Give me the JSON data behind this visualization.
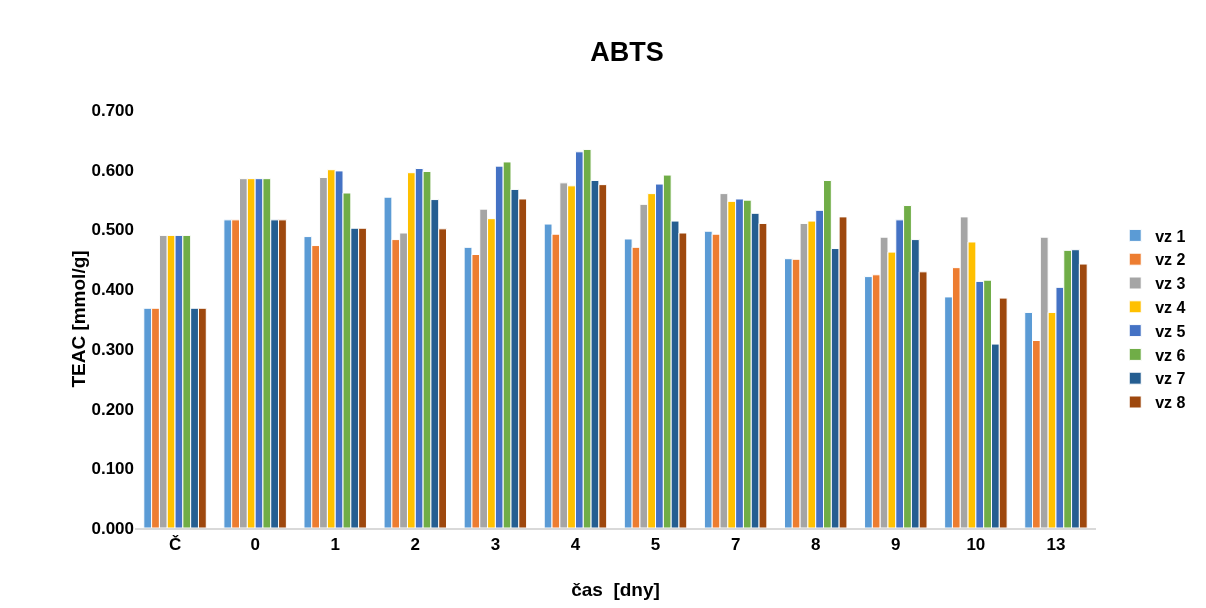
{
  "chart_data": {
    "type": "bar",
    "title": "ABTS",
    "xlabel": "čas  [dny]",
    "ylabel": "TEAC [mmol/g]",
    "categories": [
      "Č",
      "0",
      "1",
      "2",
      "3",
      "4",
      "5",
      "7",
      "8",
      "9",
      "10",
      "13"
    ],
    "series": [
      {
        "name": "vz 1",
        "color": "#5b9bd5",
        "values": [
          0.368,
          0.516,
          0.488,
          0.554,
          0.47,
          0.509,
          0.484,
          0.497,
          0.451,
          0.421,
          0.387,
          0.361
        ]
      },
      {
        "name": "vz 2",
        "color": "#ed7d31",
        "values": [
          0.368,
          0.516,
          0.473,
          0.483,
          0.458,
          0.492,
          0.47,
          0.492,
          0.45,
          0.424,
          0.436,
          0.314
        ]
      },
      {
        "name": "vz 3",
        "color": "#a5a5a5",
        "values": [
          0.49,
          0.585,
          0.587,
          0.494,
          0.534,
          0.578,
          0.542,
          0.56,
          0.51,
          0.487,
          0.521,
          0.487
        ]
      },
      {
        "name": "vz 4",
        "color": "#ffc000",
        "values": [
          0.49,
          0.585,
          0.6,
          0.595,
          0.518,
          0.573,
          0.56,
          0.547,
          0.514,
          0.462,
          0.479,
          0.361
        ]
      },
      {
        "name": "vz 5",
        "color": "#4472c4",
        "values": [
          0.49,
          0.585,
          0.598,
          0.602,
          0.606,
          0.63,
          0.576,
          0.551,
          0.532,
          0.516,
          0.413,
          0.403
        ]
      },
      {
        "name": "vz 6",
        "color": "#70ad47",
        "values": [
          0.49,
          0.585,
          0.561,
          0.597,
          0.613,
          0.634,
          0.591,
          0.549,
          0.582,
          0.54,
          0.415,
          0.465
        ]
      },
      {
        "name": "vz 7",
        "color": "#255e91",
        "values": [
          0.368,
          0.516,
          0.502,
          0.55,
          0.567,
          0.582,
          0.514,
          0.527,
          0.468,
          0.483,
          0.308,
          0.466
        ]
      },
      {
        "name": "vz 8",
        "color": "#9e480e",
        "values": [
          0.368,
          0.516,
          0.502,
          0.501,
          0.551,
          0.575,
          0.494,
          0.51,
          0.521,
          0.429,
          0.385,
          0.442
        ]
      }
    ],
    "ylim": [
      0,
      0.7
    ],
    "yticks": [
      {
        "value": 0,
        "label": "0.000"
      },
      {
        "value": 0.1,
        "label": "0.100"
      },
      {
        "value": 0.2,
        "label": "0.200"
      },
      {
        "value": 0.3,
        "label": "0.300"
      },
      {
        "value": 0.4,
        "label": "0.400"
      },
      {
        "value": 0.5,
        "label": "0.500"
      },
      {
        "value": 0.6,
        "label": "0.600"
      },
      {
        "value": 0.7,
        "label": "0.700"
      }
    ],
    "grid": false,
    "legend": "right"
  }
}
